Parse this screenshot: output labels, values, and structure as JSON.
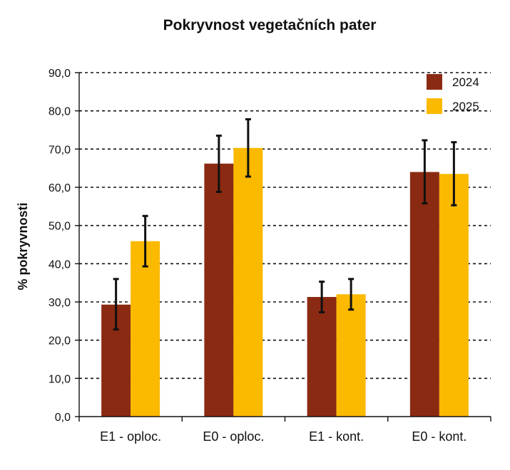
{
  "chart_data": {
    "type": "bar",
    "title": "Pokryvnost vegetačních pater",
    "ylabel": "% pokryvnosti",
    "xlabel": "",
    "ylim": [
      0,
      90
    ],
    "yticks": [
      "0,0",
      "10,0",
      "20,0",
      "30,0",
      "40,0",
      "50,0",
      "60,0",
      "70,0",
      "80,0",
      "90,0"
    ],
    "ytick_values": [
      0,
      10,
      20,
      30,
      40,
      50,
      60,
      70,
      80,
      90
    ],
    "categories": [
      "E1 - oploc.",
      "E0 - oploc.",
      "E1 - kont.",
      "E0 - kont."
    ],
    "series": [
      {
        "name": "2024",
        "color": "#8b2a12",
        "values": [
          29.3,
          66.2,
          31.3,
          64.0
        ],
        "err_low": [
          22.8,
          58.8,
          27.3,
          55.8
        ],
        "err_high": [
          36.0,
          73.5,
          35.3,
          72.3
        ]
      },
      {
        "name": "2025",
        "color": "#fbb900",
        "values": [
          45.9,
          70.3,
          32.0,
          63.5
        ],
        "err_low": [
          39.3,
          62.8,
          28.0,
          55.3
        ],
        "err_high": [
          52.5,
          77.8,
          36.0,
          71.8
        ]
      }
    ],
    "grid": true,
    "legend_position": "top-right"
  }
}
